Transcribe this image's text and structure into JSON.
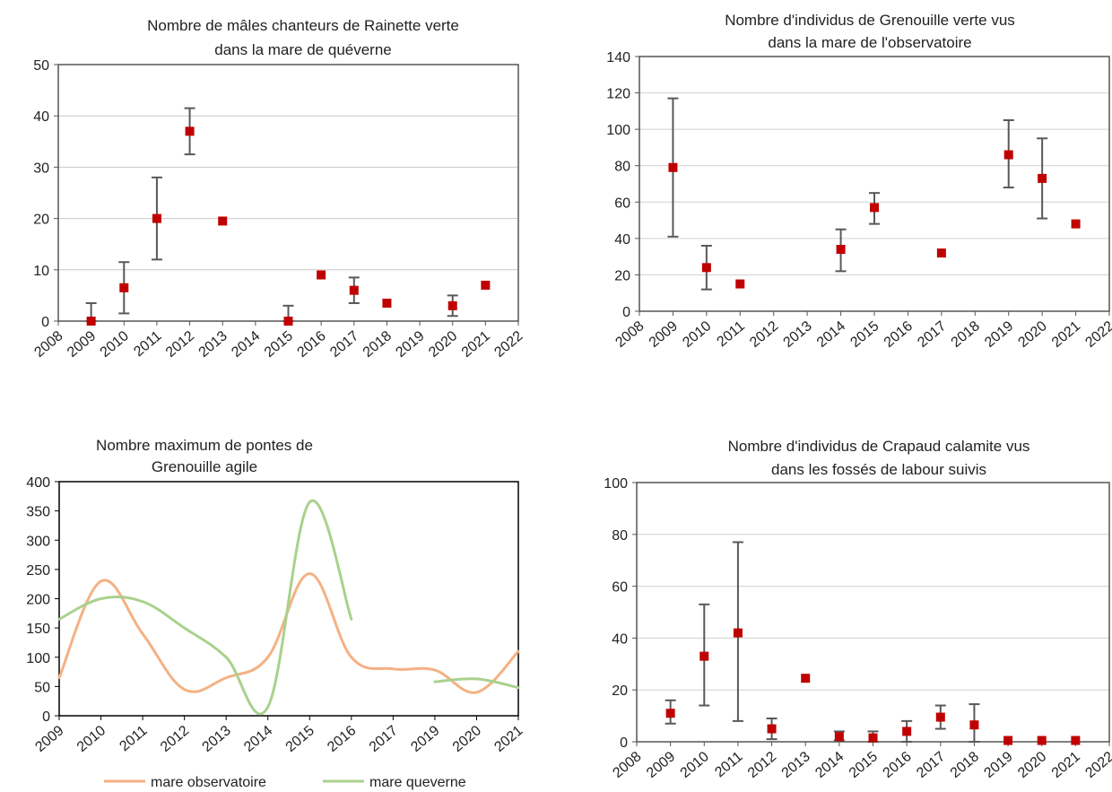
{
  "chart_data": [
    {
      "type": "scatter",
      "title_lines": [
        "Nombre de mâles chanteurs de Rainette verte",
        "dans la mare de quéverne"
      ],
      "xlim": [
        2008,
        2022
      ],
      "ylim": [
        0,
        50
      ],
      "x_ticks": [
        2008,
        2009,
        2010,
        2011,
        2012,
        2013,
        2014,
        2015,
        2016,
        2017,
        2018,
        2019,
        2020,
        2021,
        2022
      ],
      "y_ticks": [
        0,
        10,
        20,
        30,
        40,
        50
      ],
      "grid": true,
      "marker_color": "#c00000",
      "points": [
        {
          "x": 2009,
          "y": 0,
          "err_low": 0,
          "err_high": 3.5
        },
        {
          "x": 2010,
          "y": 6.5,
          "err_low": 1.5,
          "err_high": 11.5
        },
        {
          "x": 2011,
          "y": 20,
          "err_low": 12,
          "err_high": 28
        },
        {
          "x": 2012,
          "y": 37,
          "err_low": 32.5,
          "err_high": 41.5
        },
        {
          "x": 2013,
          "y": 19.5
        },
        {
          "x": 2015,
          "y": 0,
          "err_low": 0,
          "err_high": 3
        },
        {
          "x": 2016,
          "y": 9
        },
        {
          "x": 2017,
          "y": 6,
          "err_low": 3.5,
          "err_high": 8.5
        },
        {
          "x": 2018,
          "y": 3.5
        },
        {
          "x": 2020,
          "y": 3,
          "err_low": 1,
          "err_high": 5
        },
        {
          "x": 2021,
          "y": 7
        }
      ]
    },
    {
      "type": "scatter",
      "title_lines": [
        "Nombre d'individus de Grenouille verte vus",
        "dans la mare de l'observatoire"
      ],
      "xlim": [
        2008,
        2022
      ],
      "ylim": [
        0,
        140
      ],
      "x_ticks": [
        2008,
        2009,
        2010,
        2011,
        2012,
        2013,
        2014,
        2015,
        2016,
        2017,
        2018,
        2019,
        2020,
        2021,
        2022
      ],
      "y_ticks": [
        0,
        20,
        40,
        60,
        80,
        100,
        120,
        140
      ],
      "grid": true,
      "marker_color": "#c00000",
      "points": [
        {
          "x": 2009,
          "y": 79,
          "err_low": 41,
          "err_high": 117
        },
        {
          "x": 2010,
          "y": 24,
          "err_low": 12,
          "err_high": 36
        },
        {
          "x": 2011,
          "y": 15
        },
        {
          "x": 2014,
          "y": 34,
          "err_low": 22,
          "err_high": 45
        },
        {
          "x": 2015,
          "y": 57,
          "err_low": 48,
          "err_high": 65
        },
        {
          "x": 2017,
          "y": 32
        },
        {
          "x": 2019,
          "y": 86,
          "err_low": 68,
          "err_high": 105
        },
        {
          "x": 2020,
          "y": 73,
          "err_low": 51,
          "err_high": 95
        },
        {
          "x": 2021,
          "y": 48
        }
      ]
    },
    {
      "type": "line",
      "title_lines": [
        "Nombre maximum de pontes de",
        "Grenouille agile"
      ],
      "categories": [
        "2009",
        "2010",
        "2011",
        "2012",
        "2013",
        "2014",
        "2015",
        "2016",
        "2017",
        "2019",
        "2020",
        "2021"
      ],
      "ylim": [
        0,
        400
      ],
      "y_ticks": [
        0,
        50,
        100,
        150,
        200,
        250,
        300,
        350,
        400
      ],
      "grid": false,
      "legend_position": "bottom",
      "series": [
        {
          "name": "mare observatoire",
          "color": "#f4b183",
          "values": [
            65,
            230,
            140,
            45,
            65,
            100,
            243,
            100,
            80,
            78,
            40,
            110
          ]
        },
        {
          "name": "mare queverne",
          "color": "#a9d18e",
          "values": [
            165,
            200,
            195,
            150,
            100,
            15,
            365,
            165,
            null,
            58,
            63,
            48
          ]
        }
      ]
    },
    {
      "type": "scatter",
      "title_lines": [
        "Nombre d'individus de Crapaud calamite vus",
        "dans les fossés de labour suivis"
      ],
      "xlim": [
        2008,
        2022
      ],
      "ylim": [
        0,
        100
      ],
      "x_ticks": [
        2008,
        2009,
        2010,
        2011,
        2012,
        2013,
        2014,
        2015,
        2016,
        2017,
        2018,
        2019,
        2020,
        2021,
        2022
      ],
      "y_ticks": [
        0,
        20,
        40,
        60,
        80,
        100
      ],
      "grid": true,
      "marker_color": "#c00000",
      "points": [
        {
          "x": 2009,
          "y": 11,
          "err_low": 7,
          "err_high": 16
        },
        {
          "x": 2010,
          "y": 33,
          "err_low": 14,
          "err_high": 53
        },
        {
          "x": 2011,
          "y": 42,
          "err_low": 8,
          "err_high": 77
        },
        {
          "x": 2012,
          "y": 5,
          "err_low": 1,
          "err_high": 9
        },
        {
          "x": 2013,
          "y": 24.5
        },
        {
          "x": 2014,
          "y": 2,
          "err_low": 0.5,
          "err_high": 4
        },
        {
          "x": 2015,
          "y": 1.5,
          "err_low": 0,
          "err_high": 4
        },
        {
          "x": 2016,
          "y": 4,
          "err_low": 0,
          "err_high": 8
        },
        {
          "x": 2017,
          "y": 9.5,
          "err_low": 5,
          "err_high": 14
        },
        {
          "x": 2018,
          "y": 6.5,
          "err_low": 0,
          "err_high": 14.5
        },
        {
          "x": 2019,
          "y": 0.5
        },
        {
          "x": 2020,
          "y": 0.5
        },
        {
          "x": 2021,
          "y": 0.5
        }
      ]
    }
  ]
}
